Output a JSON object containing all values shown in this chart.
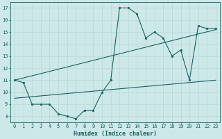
{
  "xlabel": "Humidex (Indice chaleur)",
  "ylabel": "",
  "bg_color": "#cce8e8",
  "grid_color": "#b8d8d8",
  "line_color": "#1a6060",
  "xlim": [
    -0.5,
    23.5
  ],
  "ylim": [
    7.5,
    17.5
  ],
  "xticks": [
    0,
    1,
    2,
    3,
    4,
    5,
    6,
    7,
    8,
    9,
    10,
    11,
    12,
    13,
    14,
    15,
    16,
    17,
    18,
    19,
    20,
    21,
    22,
    23
  ],
  "yticks": [
    8,
    9,
    10,
    11,
    12,
    13,
    14,
    15,
    16,
    17
  ],
  "line1_x": [
    0,
    1,
    2,
    3,
    4,
    5,
    6,
    7,
    8,
    9,
    10,
    11,
    12,
    13,
    14,
    15,
    16,
    17,
    18,
    19,
    20,
    21,
    22,
    23
  ],
  "line1_y": [
    11.0,
    10.8,
    9.0,
    9.0,
    9.0,
    8.2,
    8.0,
    7.8,
    8.5,
    8.5,
    10.0,
    11.0,
    17.0,
    17.0,
    16.5,
    14.5,
    15.0,
    14.5,
    13.0,
    13.5,
    11.0,
    15.5,
    15.3,
    15.3
  ],
  "line2_x": [
    0,
    23
  ],
  "line2_y": [
    11.0,
    15.2
  ],
  "line3_x": [
    0,
    23
  ],
  "line3_y": [
    9.5,
    11.0
  ],
  "marker_size": 2.0,
  "linewidth": 0.8,
  "tick_fontsize": 5.0,
  "xlabel_fontsize": 6.0
}
